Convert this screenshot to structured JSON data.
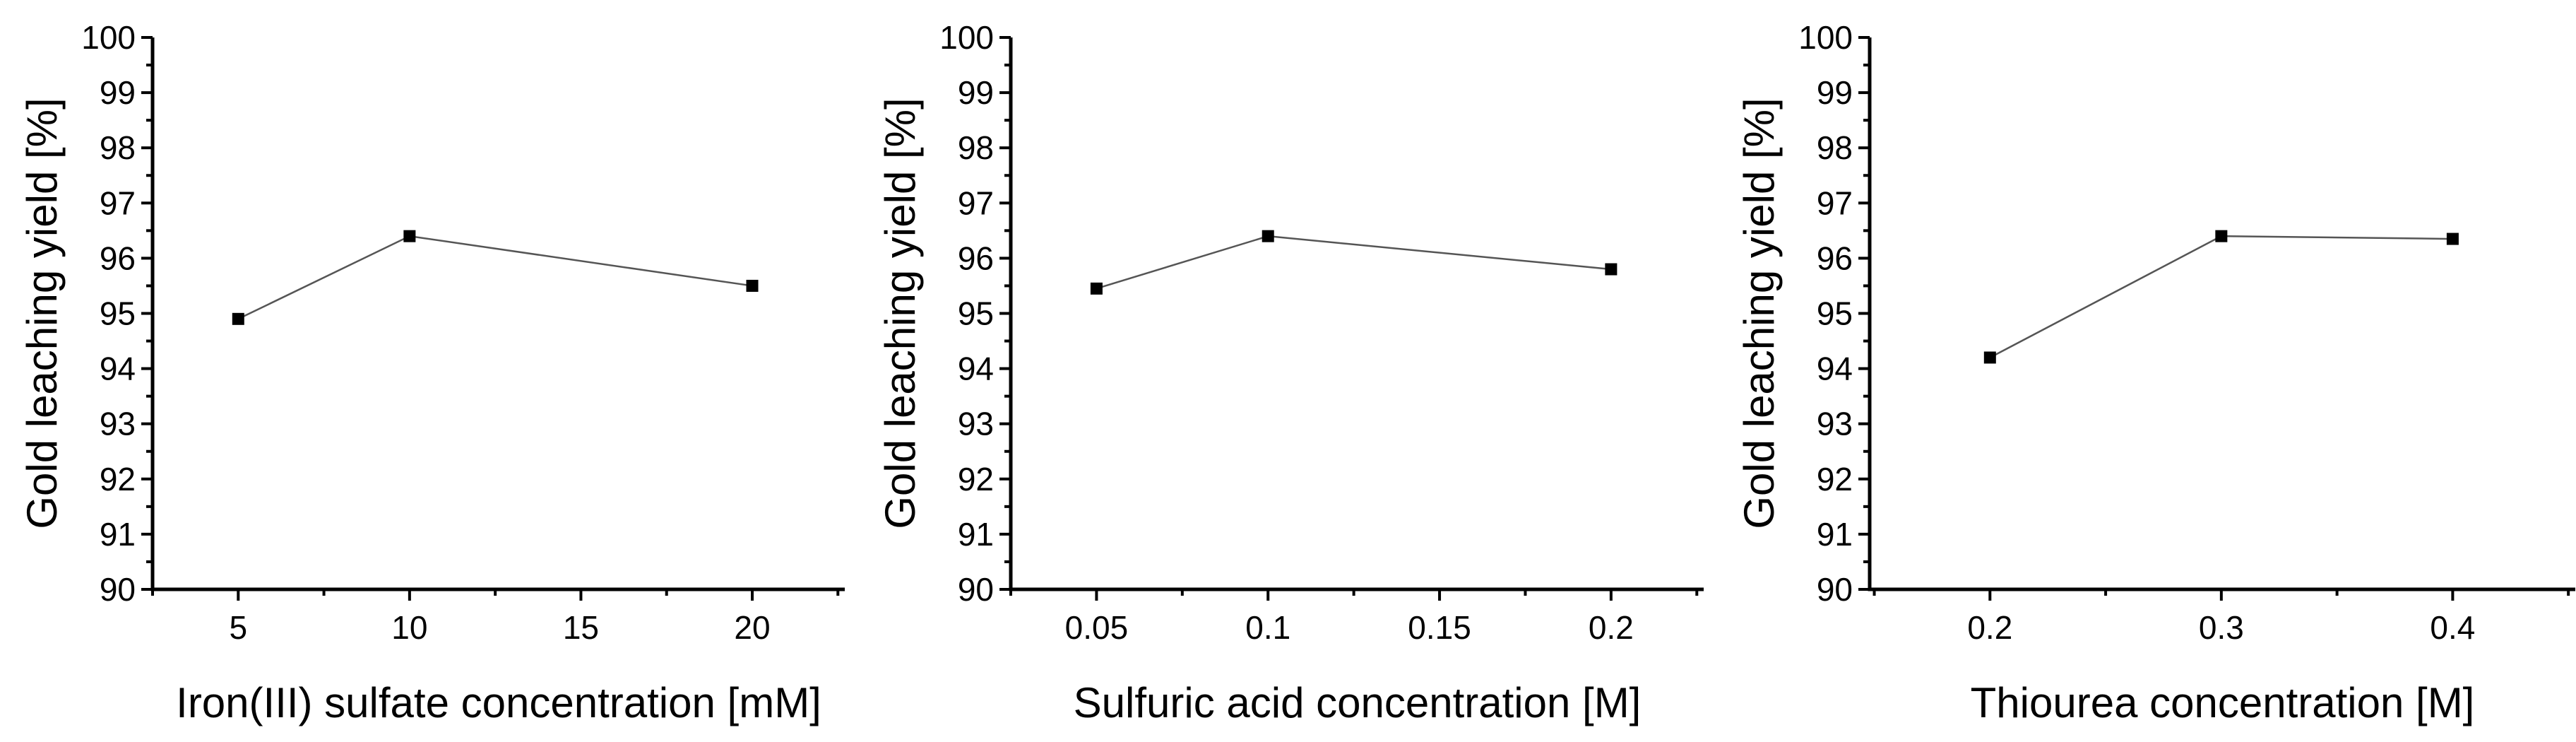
{
  "figure": {
    "background_color": "#ffffff",
    "axis_color": "#000000",
    "text_color": "#000000",
    "marker_color": "#000000",
    "series_line_color": "#555555"
  },
  "chart_data": [
    {
      "type": "line",
      "panel_id": "iron-sulfate",
      "title": "",
      "xlabel": "Iron(III) sulfate concentration [mM]",
      "ylabel": "Gold leaching yield [%]",
      "x": [
        5,
        10,
        20
      ],
      "y": [
        94.9,
        96.4,
        95.5
      ],
      "xlim": [
        2.5,
        22.7
      ],
      "ylim": [
        90,
        100
      ],
      "x_major_ticks": [
        5,
        10,
        15,
        20
      ],
      "x_major_labels": [
        "5",
        "10",
        "15",
        "20"
      ],
      "x_minor_ticks": [
        2.5,
        7.5,
        12.5,
        17.5,
        22.5
      ],
      "y_major_ticks": [
        90,
        91,
        92,
        93,
        94,
        95,
        96,
        97,
        98,
        99,
        100
      ],
      "y_major_labels": [
        "90",
        "91",
        "92",
        "93",
        "94",
        "95",
        "96",
        "97",
        "98",
        "99",
        "100"
      ],
      "y_minor_ticks": [
        90.5,
        91.5,
        92.5,
        93.5,
        94.5,
        95.5,
        96.5,
        97.5,
        98.5,
        99.5
      ],
      "marker": "square",
      "grid": false,
      "legend": "none"
    },
    {
      "type": "line",
      "panel_id": "sulfuric-acid",
      "title": "",
      "xlabel": "Sulfuric acid concentration [M]",
      "ylabel": "Gold leaching yield [%]",
      "x": [
        0.05,
        0.1,
        0.2
      ],
      "y": [
        95.45,
        96.4,
        95.8
      ],
      "xlim": [
        0.025,
        0.227
      ],
      "ylim": [
        90,
        100
      ],
      "x_major_ticks": [
        0.05,
        0.1,
        0.15,
        0.2
      ],
      "x_major_labels": [
        "0.05",
        "0.1",
        "0.15",
        "0.2"
      ],
      "x_minor_ticks": [
        0.025,
        0.075,
        0.125,
        0.175,
        0.225
      ],
      "y_major_ticks": [
        90,
        91,
        92,
        93,
        94,
        95,
        96,
        97,
        98,
        99,
        100
      ],
      "y_major_labels": [
        "90",
        "91",
        "92",
        "93",
        "94",
        "95",
        "96",
        "97",
        "98",
        "99",
        "100"
      ],
      "y_minor_ticks": [
        90.5,
        91.5,
        92.5,
        93.5,
        94.5,
        95.5,
        96.5,
        97.5,
        98.5,
        99.5
      ],
      "marker": "square",
      "grid": false,
      "legend": "none"
    },
    {
      "type": "line",
      "panel_id": "thiourea",
      "title": "",
      "xlabel": "Thiourea concentration [M]",
      "ylabel": "Gold leaching yield [%]",
      "x": [
        0.2,
        0.3,
        0.4
      ],
      "y": [
        94.2,
        96.4,
        96.35
      ],
      "xlim": [
        0.148,
        0.453
      ],
      "ylim": [
        90,
        100
      ],
      "x_major_ticks": [
        0.2,
        0.3,
        0.4
      ],
      "x_major_labels": [
        "0.2",
        "0.3",
        "0.4"
      ],
      "x_minor_ticks": [
        0.15,
        0.25,
        0.35,
        0.45
      ],
      "y_major_ticks": [
        90,
        91,
        92,
        93,
        94,
        95,
        96,
        97,
        98,
        99,
        100
      ],
      "y_major_labels": [
        "90",
        "91",
        "92",
        "93",
        "94",
        "95",
        "96",
        "97",
        "98",
        "99",
        "100"
      ],
      "y_minor_ticks": [
        90.5,
        91.5,
        92.5,
        93.5,
        94.5,
        95.5,
        96.5,
        97.5,
        98.5,
        99.5
      ],
      "marker": "square",
      "grid": false,
      "legend": "none"
    }
  ]
}
